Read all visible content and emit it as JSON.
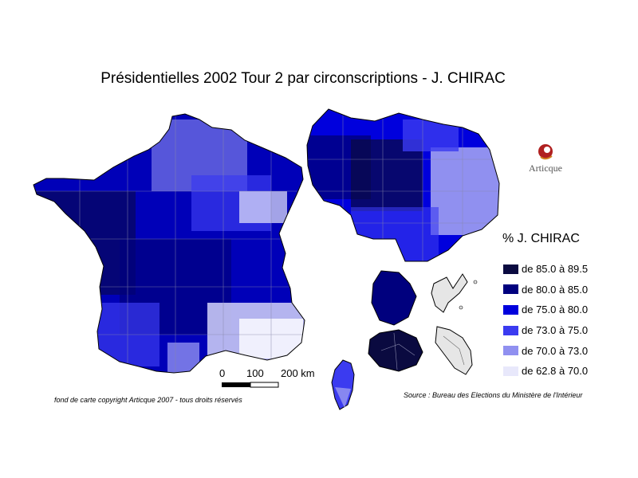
{
  "title": "Présidentielles 2002 Tour 2 par circonscriptions - J. CHIRAC",
  "legend": {
    "title": "% J. CHIRAC",
    "classes": [
      {
        "label": "de 85.0 à 89.5",
        "color": "#0a0a40"
      },
      {
        "label": "de 80.0 à 85.0",
        "color": "#00007e"
      },
      {
        "label": "de 75.0 à 80.0",
        "color": "#0000dd"
      },
      {
        "label": "de 73.0 à 75.0",
        "color": "#3b3bf0"
      },
      {
        "label": "de 70.0 à 73.0",
        "color": "#9090f0"
      },
      {
        "label": "de 62.8 à 70.0",
        "color": "#e8e8fb"
      }
    ]
  },
  "scale": {
    "labels": [
      "0",
      "100",
      "200 km"
    ]
  },
  "logo": {
    "text": "Articque"
  },
  "copyright": "fond de carte copyright Articque 2007 - tous droits réservés",
  "source": "Source : Bureau des Elections du Ministère de l'Intérieur"
}
